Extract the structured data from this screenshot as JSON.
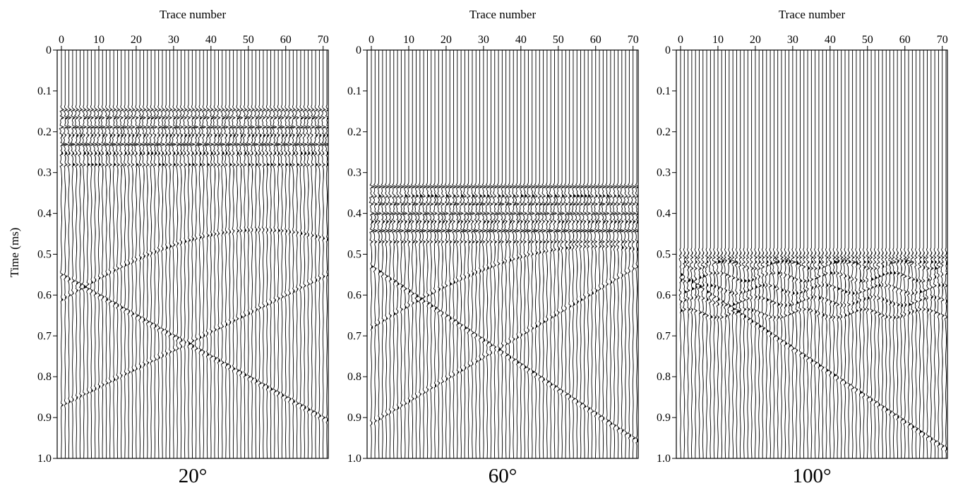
{
  "figure": {
    "xlabel": "Trace number",
    "ylabel": "Time (ms)"
  },
  "chart_data": [
    {
      "type": "seismic-wiggle",
      "title": "20°",
      "xlabel": "Trace number",
      "ylabel": "Time (ms)",
      "xlim": [
        0,
        71
      ],
      "ylim": [
        1.0,
        0
      ],
      "x_ticks": [
        0,
        10,
        20,
        30,
        40,
        50,
        60,
        70
      ],
      "y_ticks": [
        0,
        0.1,
        0.2,
        0.3,
        0.4,
        0.5,
        0.6,
        0.7,
        0.8,
        0.9,
        1.0
      ],
      "trace_count": 72,
      "events": [
        {
          "kind": "strong-flat",
          "t_start": 0.135,
          "t_end": 0.255
        },
        {
          "kind": "flat-tail",
          "t_start": 0.255,
          "t_end": 0.29
        },
        {
          "kind": "dipping",
          "t0": 0.55,
          "slope": 0.005
        },
        {
          "kind": "hyperbola-apex",
          "x": 53,
          "t": 0.44
        }
      ]
    },
    {
      "type": "seismic-wiggle",
      "title": "60°",
      "xlabel": "Trace number",
      "ylabel": "Time (ms)",
      "xlim": [
        0,
        71
      ],
      "ylim": [
        1.0,
        0
      ],
      "x_ticks": [
        0,
        10,
        20,
        30,
        40,
        50,
        60,
        70
      ],
      "y_ticks": [
        0,
        0.1,
        0.2,
        0.3,
        0.4,
        0.5,
        0.6,
        0.7,
        0.8,
        0.9,
        1.0
      ],
      "trace_count": 72,
      "events": [
        {
          "kind": "strong-flat",
          "t_start": 0.325,
          "t_end": 0.445
        },
        {
          "kind": "flat-tail",
          "t_start": 0.445,
          "t_end": 0.48
        },
        {
          "kind": "dipping",
          "t0": 0.53,
          "slope": 0.006
        },
        {
          "kind": "hyperbola-apex",
          "x": 60,
          "t": 0.48
        }
      ]
    },
    {
      "type": "seismic-wiggle",
      "title": "100°",
      "xlabel": "Trace number",
      "ylabel": "Time (ms)",
      "xlim": [
        0,
        71
      ],
      "ylim": [
        1.0,
        0
      ],
      "x_ticks": [
        0,
        10,
        20,
        30,
        40,
        50,
        60,
        70
      ],
      "y_ticks": [
        0,
        0.1,
        0.2,
        0.3,
        0.4,
        0.5,
        0.6,
        0.7,
        0.8,
        0.9,
        1.0
      ],
      "trace_count": 72,
      "events": [
        {
          "kind": "strong-flat",
          "t_start": 0.485,
          "t_end": 0.52
        },
        {
          "kind": "scattered",
          "t_start": 0.52,
          "t_end": 0.67
        },
        {
          "kind": "dipping",
          "t0": 0.55,
          "slope": 0.006
        }
      ]
    }
  ]
}
